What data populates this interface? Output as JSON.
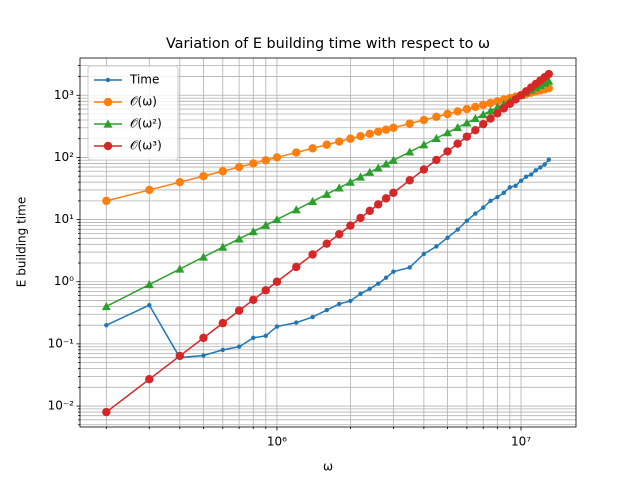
{
  "chart_data": {
    "type": "line",
    "title": "Variation of E building time with respect to ω",
    "xlabel": "ω",
    "ylabel": "E building time",
    "xscale": "log",
    "yscale": "log",
    "grid": true,
    "legend": "upper left",
    "x": [
      200000,
      300000,
      400000,
      500000,
      600000,
      700000,
      800000,
      900000,
      1000000,
      1200000,
      1400000,
      1600000,
      1800000,
      2000000,
      2200000,
      2400000,
      2600000,
      2800000,
      3000000,
      3500000,
      4000000,
      4500000,
      5000000,
      5500000,
      6000000,
      6500000,
      7000000,
      7500000,
      8000000,
      8500000,
      9000000,
      9500000,
      10000000,
      10500000,
      11000000,
      11500000,
      12000000,
      12500000,
      13000000
    ],
    "series": [
      {
        "name": "Time",
        "color": "#1f77b4",
        "marker": "dot",
        "values": [
          0.2,
          0.42,
          0.06,
          0.065,
          0.08,
          0.09,
          0.125,
          0.135,
          0.19,
          0.22,
          0.27,
          0.35,
          0.44,
          0.49,
          0.64,
          0.77,
          0.93,
          1.16,
          1.45,
          1.7,
          2.8,
          3.7,
          5.1,
          6.9,
          9.6,
          12.5,
          15.6,
          20,
          23,
          27,
          33,
          35,
          42,
          49,
          53,
          62,
          69,
          77,
          92
        ]
      },
      {
        "name": "𝒪(ω)",
        "color": "#ff7f0e",
        "marker": "circle",
        "values": [
          20,
          30,
          40,
          50,
          60,
          70,
          80,
          90,
          100,
          120,
          140,
          160,
          180,
          200,
          220,
          240,
          260,
          280,
          300,
          350,
          400,
          450,
          500,
          550,
          600,
          650,
          700,
          750,
          800,
          850,
          900,
          950,
          1000,
          1050,
          1100,
          1150,
          1200,
          1250,
          1300
        ]
      },
      {
        "name": "𝒪(ω²)",
        "color": "#2ca02c",
        "marker": "triangle",
        "values": [
          0.4,
          0.9,
          1.6,
          2.5,
          3.6,
          4.9,
          6.4,
          8.1,
          10,
          14.4,
          19.6,
          25.6,
          32.4,
          40,
          48.4,
          57.6,
          67.6,
          78.4,
          90,
          122.5,
          160,
          202.5,
          250,
          302.5,
          360,
          422.5,
          490,
          562.5,
          640,
          722.5,
          810,
          902.5,
          1000,
          1102.5,
          1210,
          1322.5,
          1440,
          1562.5,
          1690
        ]
      },
      {
        "name": "𝒪(ω³)",
        "color": "#d62728",
        "marker": "circle",
        "values": [
          0.008,
          0.027,
          0.064,
          0.125,
          0.216,
          0.343,
          0.512,
          0.729,
          1,
          1.728,
          2.744,
          4.096,
          5.832,
          8,
          10.648,
          13.824,
          17.576,
          21.952,
          27,
          42.875,
          64,
          91.125,
          125,
          166.375,
          216,
          274.625,
          343,
          421.875,
          512,
          614.125,
          729,
          857.375,
          1000,
          1157.625,
          1331,
          1520.875,
          1728,
          1953.125,
          2197
        ]
      }
    ],
    "xlim": [
      156000,
      16800000
    ],
    "ylim": [
      0.0046,
      3980
    ],
    "xticks": [
      {
        "value": 1000000,
        "label": "10⁶"
      },
      {
        "value": 10000000,
        "label": "10⁷"
      }
    ],
    "yticks": [
      {
        "value": 0.01,
        "label": "10⁻²"
      },
      {
        "value": 0.1,
        "label": "10⁻¹"
      },
      {
        "value": 1,
        "label": "10⁰"
      },
      {
        "value": 10,
        "label": "10¹"
      },
      {
        "value": 100,
        "label": "10²"
      },
      {
        "value": 1000,
        "label": "10³"
      }
    ],
    "xminorticks": [
      200000,
      300000,
      400000,
      500000,
      600000,
      700000,
      800000,
      900000,
      2000000,
      3000000,
      4000000,
      5000000,
      6000000,
      7000000,
      8000000,
      9000000
    ],
    "yminorticks": [
      0.005,
      0.006,
      0.007,
      0.008,
      0.009,
      0.02,
      0.03,
      0.04,
      0.05,
      0.06,
      0.07,
      0.08,
      0.09,
      0.2,
      0.3,
      0.4,
      0.5,
      0.6,
      0.7,
      0.8,
      0.9,
      2,
      3,
      4,
      5,
      6,
      7,
      8,
      9,
      20,
      30,
      40,
      50,
      60,
      70,
      80,
      90,
      200,
      300,
      400,
      500,
      600,
      700,
      800,
      900,
      2000,
      3000
    ]
  }
}
